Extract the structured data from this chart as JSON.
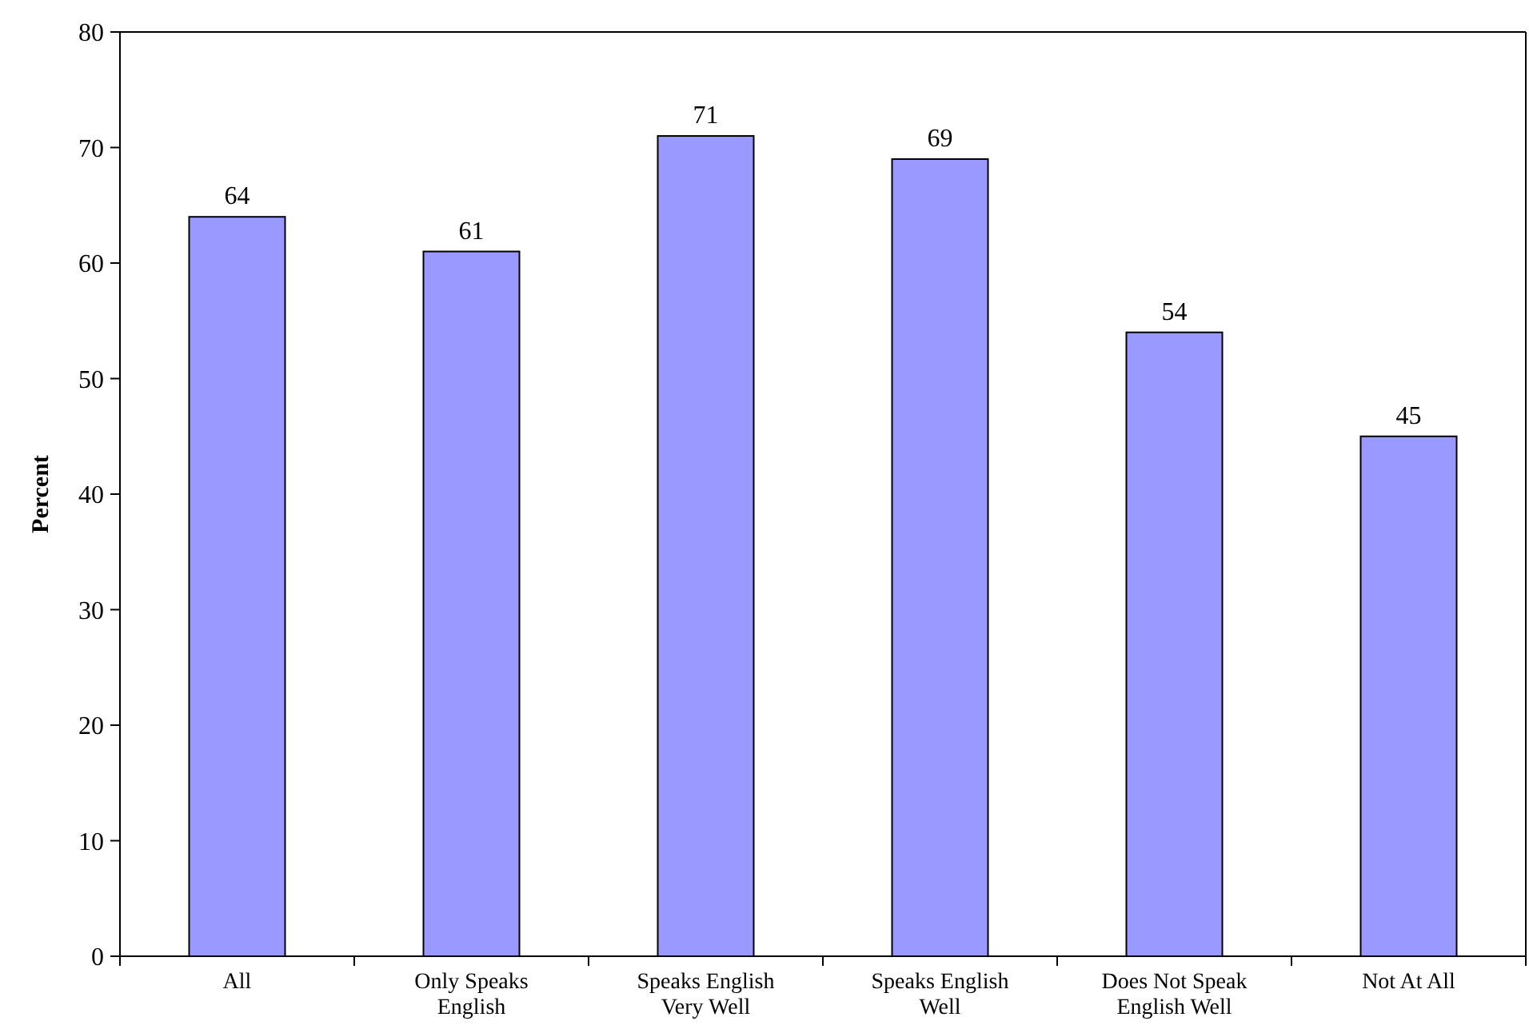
{
  "chart_data": {
    "type": "bar",
    "ylabel": "Percent",
    "categories": [
      "All",
      "Only Speaks English",
      "Speaks English Very Well",
      "Speaks English Well",
      "Does Not Speak English Well",
      "Not At All"
    ],
    "values": [
      64,
      61,
      71,
      69,
      54,
      45
    ],
    "color": "#9999ff",
    "ylim": [
      0,
      80
    ],
    "yticks": [
      0,
      10,
      20,
      30,
      40,
      50,
      60,
      70,
      80
    ],
    "grid": false,
    "data_labels": true
  }
}
